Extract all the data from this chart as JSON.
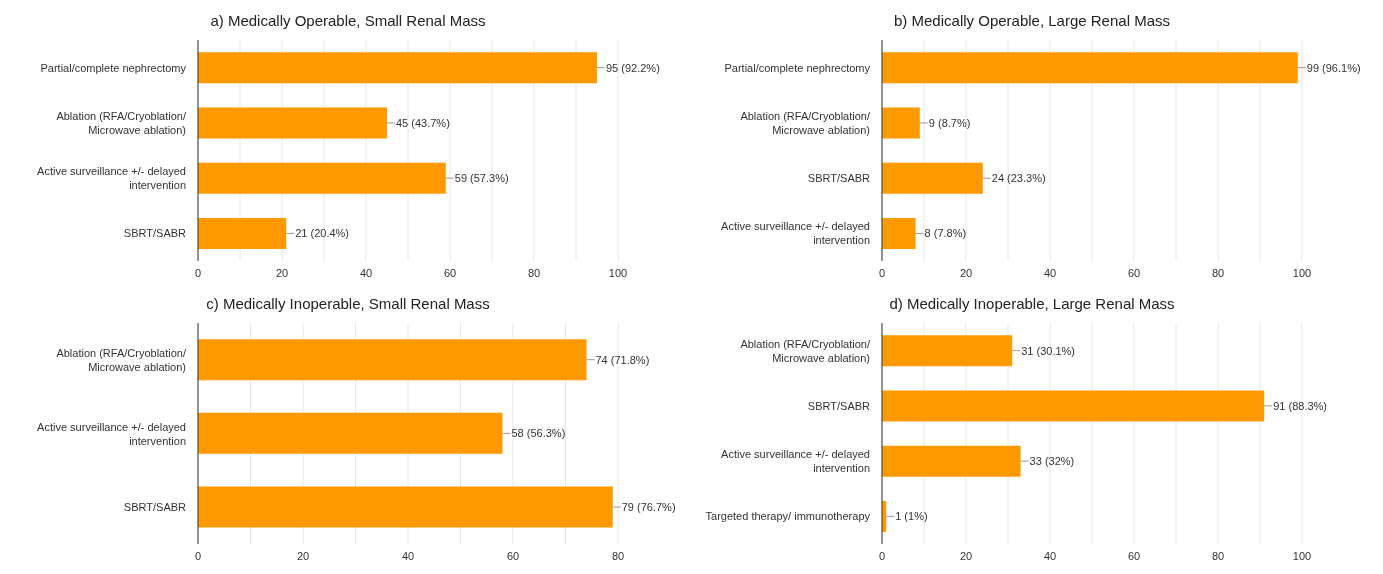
{
  "chart_data": [
    {
      "type": "bar",
      "orientation": "horizontal",
      "title": "a) Medically Operable, Small Renal Mass",
      "categories": [
        "Partial/complete nephrectomy",
        "Ablation (RFA/Cryoblation/ Microwave ablation)",
        "Active surveillance +/- delayed intervention",
        "SBRT/SABR"
      ],
      "values": [
        95,
        45,
        59,
        21
      ],
      "value_labels": [
        "95 (92.2%)",
        "45 (43.7%)",
        "59 (57.3%)",
        "21 (20.4%)"
      ],
      "color": "#ff9900",
      "xlim": [
        0,
        100
      ],
      "xticks": [
        0,
        {
          "value": 10,
          "label": null
        },
        20,
        {
          "value": 30,
          "label": null
        },
        40,
        {
          "value": 50,
          "label": null
        },
        60,
        {
          "value": 70,
          "label": null
        },
        80,
        {
          "value": 90,
          "label": null
        },
        100
      ],
      "grid": "x"
    },
    {
      "type": "bar",
      "orientation": "horizontal",
      "title": "b) Medically Operable, Large Renal Mass",
      "categories": [
        "Partial/complete nephrectomy",
        "Ablation (RFA/Cryoblation/ Microwave ablation)",
        "SBRT/SABR",
        "Active surveillance +/- delayed intervention"
      ],
      "values": [
        99,
        9,
        24,
        8
      ],
      "value_labels": [
        "99 (96.1%)",
        "9 (8.7%)",
        "24 (23.3%)",
        "8 (7.8%)"
      ],
      "color": "#ff9900",
      "xlim": [
        0,
        100
      ],
      "xticks": [
        0,
        {
          "value": 10,
          "label": null
        },
        20,
        {
          "value": 30,
          "label": null
        },
        40,
        {
          "value": 50,
          "label": null
        },
        60,
        {
          "value": 70,
          "label": null
        },
        80,
        {
          "value": 90,
          "label": null
        },
        100
      ],
      "grid": "x"
    },
    {
      "type": "bar",
      "orientation": "horizontal",
      "title": "c) Medically Inoperable, Small Renal Mass",
      "categories": [
        "Ablation (RFA/Cryoblation/ Microwave ablation)",
        "Active surveillance +/- delayed intervention",
        "SBRT/SABR"
      ],
      "values": [
        74,
        58,
        79
      ],
      "value_labels": [
        "74 (71.8%)",
        "58 (56.3%)",
        "79 (76.7%)"
      ],
      "color": "#ff9900",
      "xlim": [
        0,
        80
      ],
      "xticks": [
        0,
        {
          "value": 10,
          "label": null
        },
        20,
        {
          "value": 30,
          "label": null
        },
        40,
        {
          "value": 50,
          "label": null
        },
        60,
        {
          "value": 70,
          "label": null
        },
        80
      ],
      "grid": "x"
    },
    {
      "type": "bar",
      "orientation": "horizontal",
      "title": "d) Medically Inoperable, Large Renal Mass",
      "categories": [
        "Ablation (RFA/Cryoblation/ Microwave ablation)",
        "SBRT/SABR",
        "Active surveillance +/- delayed intervention",
        "Targeted therapy/ immunotherapy"
      ],
      "values": [
        31,
        91,
        33,
        1
      ],
      "value_labels": [
        "31 (30.1%)",
        "91 (88.3%)",
        "33 (32%)",
        "1 (1%)"
      ],
      "color": "#ff9900",
      "xlim": [
        0,
        100
      ],
      "xticks": [
        0,
        {
          "value": 10,
          "label": null
        },
        20,
        {
          "value": 30,
          "label": null
        },
        40,
        {
          "value": 50,
          "label": null
        },
        60,
        {
          "value": 70,
          "label": null
        },
        80,
        {
          "value": 90,
          "label": null
        },
        100
      ],
      "grid": "x"
    }
  ]
}
